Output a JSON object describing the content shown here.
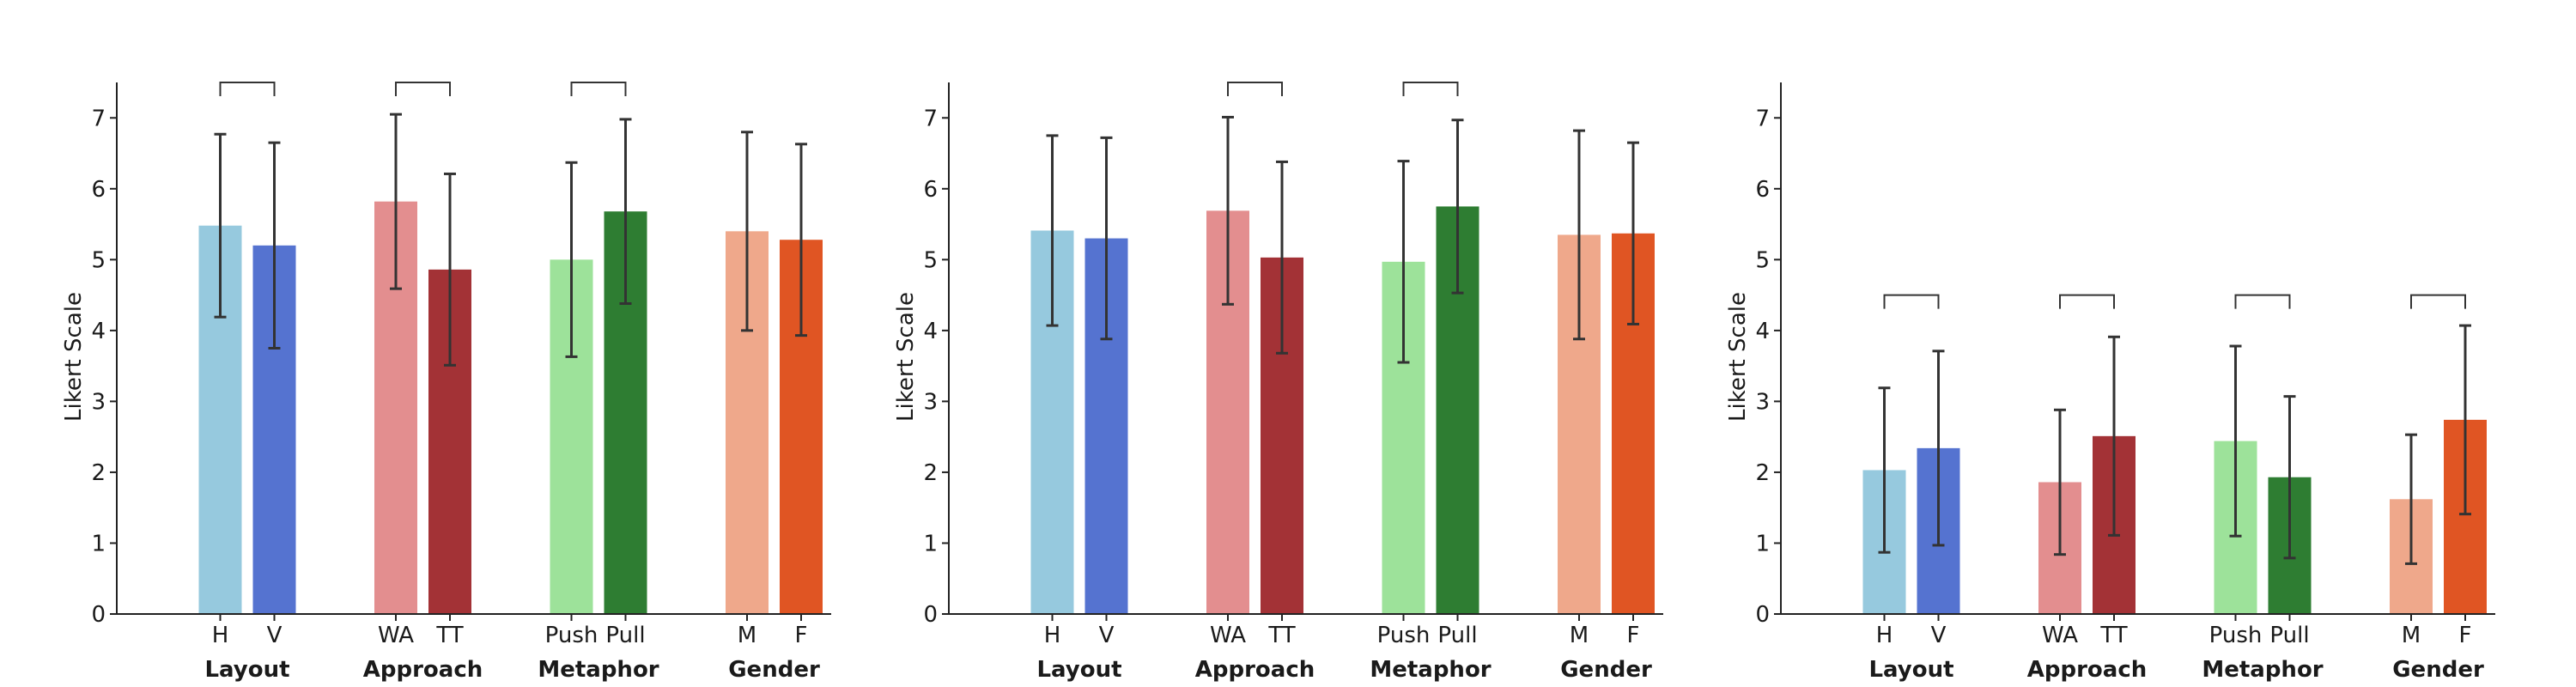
{
  "chart_data": [
    {
      "type": "bar",
      "title": "",
      "xlabel": "",
      "ylabel": "Likert Scale",
      "ylim": [
        0,
        7.5
      ],
      "yticks": [
        0,
        1,
        2,
        3,
        4,
        5,
        6,
        7
      ],
      "grid": false,
      "groups": [
        {
          "name": "Layout",
          "bars": [
            {
              "label": "H",
              "value": 5.48,
              "err": 1.29,
              "color": "#96c9de"
            },
            {
              "label": "V",
              "value": 5.2,
              "err": 1.45,
              "color": "#5573d0"
            }
          ],
          "bracket": true
        },
        {
          "name": "Approach",
          "bars": [
            {
              "label": "WA",
              "value": 5.82,
              "err": 1.23,
              "color": "#e38e8f"
            },
            {
              "label": "TT",
              "value": 4.86,
              "err": 1.35,
              "color": "#a33236"
            }
          ],
          "bracket": true
        },
        {
          "name": "Metaphor",
          "bars": [
            {
              "label": "Push",
              "value": 5.0,
              "err": 1.37,
              "color": "#9de29a"
            },
            {
              "label": "Pull",
              "value": 5.68,
              "err": 1.3,
              "color": "#2e7d32"
            }
          ],
          "bracket": true
        },
        {
          "name": "Gender",
          "bars": [
            {
              "label": "M",
              "value": 5.4,
              "err": 1.4,
              "color": "#efa88b"
            },
            {
              "label": "F",
              "value": 5.28,
              "err": 1.35,
              "color": "#e05523"
            }
          ],
          "bracket": false
        }
      ]
    },
    {
      "type": "bar",
      "title": "",
      "xlabel": "",
      "ylabel": "Likert Scale",
      "ylim": [
        0,
        7.5
      ],
      "yticks": [
        0,
        1,
        2,
        3,
        4,
        5,
        6,
        7
      ],
      "grid": false,
      "groups": [
        {
          "name": "Layout",
          "bars": [
            {
              "label": "H",
              "value": 5.41,
              "err": 1.34,
              "color": "#96c9de"
            },
            {
              "label": "V",
              "value": 5.3,
              "err": 1.42,
              "color": "#5573d0"
            }
          ],
          "bracket": false
        },
        {
          "name": "Approach",
          "bars": [
            {
              "label": "WA",
              "value": 5.69,
              "err": 1.32,
              "color": "#e38e8f"
            },
            {
              "label": "TT",
              "value": 5.03,
              "err": 1.35,
              "color": "#a33236"
            }
          ],
          "bracket": true
        },
        {
          "name": "Metaphor",
          "bars": [
            {
              "label": "Push",
              "value": 4.97,
              "err": 1.42,
              "color": "#9de29a"
            },
            {
              "label": "Pull",
              "value": 5.75,
              "err": 1.22,
              "color": "#2e7d32"
            }
          ],
          "bracket": true
        },
        {
          "name": "Gender",
          "bars": [
            {
              "label": "M",
              "value": 5.35,
              "err": 1.47,
              "color": "#efa88b"
            },
            {
              "label": "F",
              "value": 5.37,
              "err": 1.28,
              "color": "#e05523"
            }
          ],
          "bracket": false
        }
      ]
    },
    {
      "type": "bar",
      "title": "",
      "xlabel": "",
      "ylabel": "Likert Scale",
      "ylim": [
        0,
        7.5
      ],
      "yticks": [
        0,
        1,
        2,
        3,
        4,
        5,
        6,
        7
      ],
      "grid": false,
      "groups": [
        {
          "name": "Layout",
          "bars": [
            {
              "label": "H",
              "value": 2.03,
              "err": 1.16,
              "color": "#96c9de"
            },
            {
              "label": "V",
              "value": 2.34,
              "err": 1.37,
              "color": "#5573d0"
            }
          ],
          "bracket": true
        },
        {
          "name": "Approach",
          "bars": [
            {
              "label": "WA",
              "value": 1.86,
              "err": 1.02,
              "color": "#e38e8f"
            },
            {
              "label": "TT",
              "value": 2.51,
              "err": 1.4,
              "color": "#a33236"
            }
          ],
          "bracket": true
        },
        {
          "name": "Metaphor",
          "bars": [
            {
              "label": "Push",
              "value": 2.44,
              "err": 1.34,
              "color": "#9de29a"
            },
            {
              "label": "Pull",
              "value": 1.93,
              "err": 1.14,
              "color": "#2e7d32"
            }
          ],
          "bracket": true
        },
        {
          "name": "Gender",
          "bars": [
            {
              "label": "M",
              "value": 1.62,
              "err": 0.91,
              "color": "#efa88b"
            },
            {
              "label": "F",
              "value": 2.74,
              "err": 1.33,
              "color": "#e05523"
            }
          ],
          "bracket": true
        }
      ]
    }
  ]
}
